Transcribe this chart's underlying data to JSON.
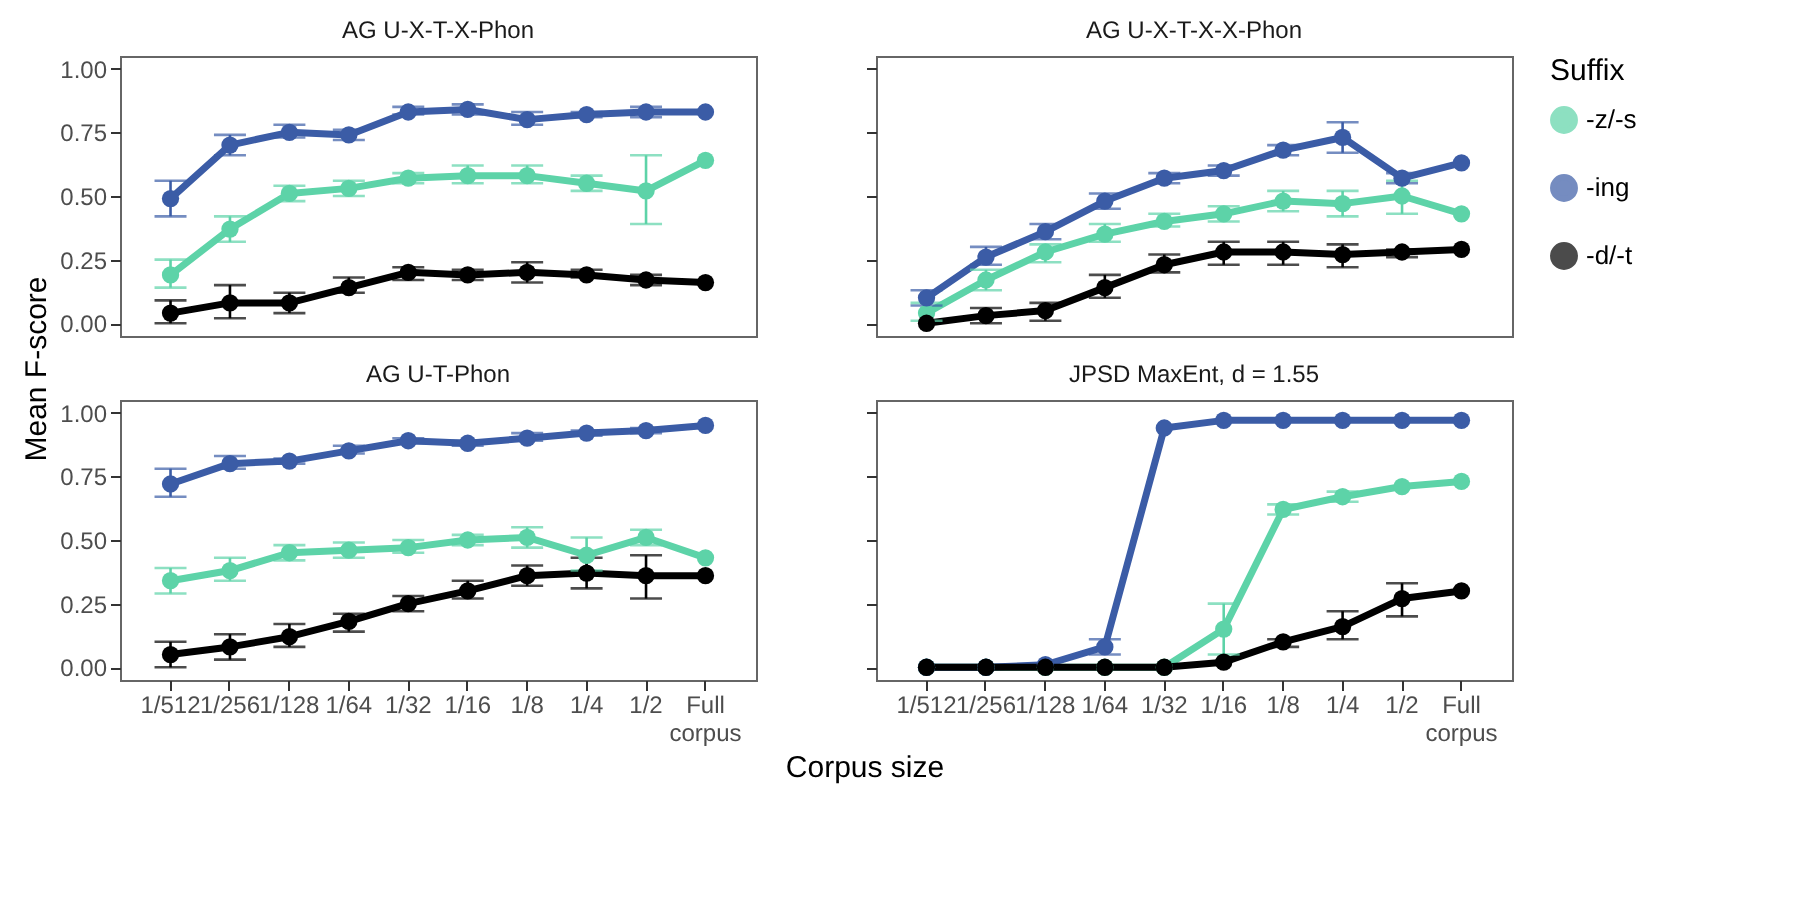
{
  "chart_data": [
    {
      "type": "line",
      "title": "AG U-X-T-X-Phon",
      "ylabel": "Mean F-score",
      "legend_title": "Suffix",
      "legend": "right",
      "marker": "circle",
      "line_style": "solid",
      "tick_labels": "y",
      "categories": [
        "1/512",
        "1/256",
        "1/128",
        "1/64",
        "1/32",
        "1/16",
        "1/8",
        "1/4",
        "1/2",
        "Full corpus"
      ],
      "ylim": [
        -0.05,
        1.05
      ],
      "yticks": [
        {
          "value": 0,
          "label": "0.00"
        },
        {
          "value": 0.25,
          "label": "0.25"
        },
        {
          "value": 0.5,
          "label": "0.50"
        },
        {
          "value": 0.75,
          "label": "0.75"
        },
        {
          "value": 1,
          "label": "1.00"
        }
      ],
      "series": [
        {
          "name": "-z/-s",
          "color": "#5dd3a8",
          "values": [
            0.19,
            0.37,
            0.51,
            0.53,
            0.57,
            0.58,
            0.58,
            0.55,
            0.52,
            0.64
          ],
          "errors": [
            [
              0.14,
              0.25
            ],
            [
              0.32,
              0.42
            ],
            [
              0.48,
              0.54
            ],
            [
              0.5,
              0.56
            ],
            [
              0.55,
              0.59
            ],
            [
              0.55,
              0.62
            ],
            [
              0.55,
              0.62
            ],
            [
              0.52,
              0.58
            ],
            [
              0.39,
              0.66
            ],
            null
          ]
        },
        {
          "name": "-ing",
          "color": "#3b5ca6",
          "values": [
            0.49,
            0.7,
            0.75,
            0.74,
            0.83,
            0.84,
            0.8,
            0.82,
            0.83,
            0.83
          ],
          "errors": [
            [
              0.42,
              0.56
            ],
            [
              0.66,
              0.74
            ],
            [
              0.73,
              0.78
            ],
            [
              0.72,
              0.76
            ],
            [
              0.82,
              0.85
            ],
            [
              0.82,
              0.86
            ],
            [
              0.78,
              0.83
            ],
            [
              0.81,
              0.83
            ],
            [
              0.81,
              0.85
            ],
            null
          ]
        },
        {
          "name": "-d/-t",
          "color": "#000000",
          "values": [
            0.04,
            0.08,
            0.08,
            0.14,
            0.2,
            0.19,
            0.2,
            0.19,
            0.17,
            0.16
          ],
          "errors": [
            [
              0.0,
              0.09
            ],
            [
              0.02,
              0.15
            ],
            [
              0.04,
              0.12
            ],
            [
              0.12,
              0.18
            ],
            [
              0.17,
              0.22
            ],
            [
              0.17,
              0.21
            ],
            [
              0.16,
              0.24
            ],
            [
              0.18,
              0.21
            ],
            [
              0.15,
              0.19
            ],
            null
          ]
        }
      ]
    },
    {
      "type": "line",
      "title": "AG U-X-T-X-X-Phon",
      "marker": "circle",
      "line_style": "solid",
      "tick_labels": false,
      "categories": [
        "1/512",
        "1/256",
        "1/128",
        "1/64",
        "1/32",
        "1/16",
        "1/8",
        "1/4",
        "1/2",
        "Full corpus"
      ],
      "ylim": [
        -0.05,
        1.05
      ],
      "yticks": [
        {
          "value": 0,
          "label": "0.00"
        },
        {
          "value": 0.25,
          "label": "0.25"
        },
        {
          "value": 0.5,
          "label": "0.50"
        },
        {
          "value": 0.75,
          "label": "0.75"
        },
        {
          "value": 1,
          "label": "1.00"
        }
      ],
      "series": [
        {
          "name": "-z/-s",
          "color": "#5dd3a8",
          "values": [
            0.04,
            0.17,
            0.28,
            0.35,
            0.4,
            0.43,
            0.48,
            0.47,
            0.5,
            0.43
          ],
          "errors": [
            [
              0.01,
              0.08
            ],
            [
              0.13,
              0.21
            ],
            [
              0.24,
              0.31
            ],
            [
              0.32,
              0.39
            ],
            [
              0.38,
              0.43
            ],
            [
              0.4,
              0.46
            ],
            [
              0.44,
              0.52
            ],
            [
              0.42,
              0.52
            ],
            [
              0.43,
              0.56
            ],
            null
          ]
        },
        {
          "name": "-ing",
          "color": "#3b5ca6",
          "values": [
            0.1,
            0.26,
            0.36,
            0.48,
            0.57,
            0.6,
            0.68,
            0.73,
            0.57,
            0.63
          ],
          "errors": [
            [
              0.07,
              0.13
            ],
            [
              0.23,
              0.3
            ],
            [
              0.33,
              0.39
            ],
            [
              0.45,
              0.51
            ],
            [
              0.55,
              0.59
            ],
            [
              0.58,
              0.62
            ],
            [
              0.66,
              0.7
            ],
            [
              0.67,
              0.79
            ],
            [
              0.55,
              0.59
            ],
            null
          ]
        },
        {
          "name": "-d/-t",
          "color": "#000000",
          "values": [
            0.0,
            0.03,
            0.05,
            0.14,
            0.23,
            0.28,
            0.28,
            0.27,
            0.28,
            0.29
          ],
          "errors": [
            null,
            [
              0.0,
              0.06
            ],
            [
              0.01,
              0.08
            ],
            [
              0.1,
              0.19
            ],
            [
              0.2,
              0.27
            ],
            [
              0.23,
              0.32
            ],
            [
              0.23,
              0.32
            ],
            [
              0.22,
              0.31
            ],
            [
              0.26,
              0.29
            ],
            null
          ]
        }
      ]
    },
    {
      "type": "line",
      "title": "AG U-T-Phon",
      "marker": "circle",
      "line_style": "solid",
      "categories": [
        "1/512",
        "1/256",
        "1/128",
        "1/64",
        "1/32",
        "1/16",
        "1/8",
        "1/4",
        "1/2",
        "Full corpus"
      ],
      "ylim": [
        -0.05,
        1.05
      ],
      "yticks": [
        {
          "value": 0,
          "label": "0.00"
        },
        {
          "value": 0.25,
          "label": "0.25"
        },
        {
          "value": 0.5,
          "label": "0.50"
        },
        {
          "value": 0.75,
          "label": "0.75"
        },
        {
          "value": 1,
          "label": "1.00"
        }
      ],
      "series": [
        {
          "name": "-z/-s",
          "color": "#5dd3a8",
          "values": [
            0.34,
            0.38,
            0.45,
            0.46,
            0.47,
            0.5,
            0.51,
            0.44,
            0.51,
            0.43
          ],
          "errors": [
            [
              0.29,
              0.39
            ],
            [
              0.34,
              0.43
            ],
            [
              0.42,
              0.48
            ],
            [
              0.43,
              0.49
            ],
            [
              0.45,
              0.5
            ],
            [
              0.48,
              0.52
            ],
            [
              0.47,
              0.55
            ],
            [
              0.38,
              0.51
            ],
            [
              0.48,
              0.54
            ],
            null
          ]
        },
        {
          "name": "-ing",
          "color": "#3b5ca6",
          "values": [
            0.72,
            0.8,
            0.81,
            0.85,
            0.89,
            0.88,
            0.9,
            0.92,
            0.93,
            0.95
          ],
          "errors": [
            [
              0.67,
              0.78
            ],
            [
              0.78,
              0.83
            ],
            [
              0.8,
              0.82
            ],
            [
              0.84,
              0.87
            ],
            [
              0.88,
              0.9
            ],
            [
              0.87,
              0.89
            ],
            [
              0.89,
              0.92
            ],
            [
              0.91,
              0.93
            ],
            [
              0.92,
              0.94
            ],
            null
          ]
        },
        {
          "name": "-d/-t",
          "color": "#000000",
          "values": [
            0.05,
            0.08,
            0.12,
            0.18,
            0.25,
            0.3,
            0.36,
            0.37,
            0.36,
            0.36
          ],
          "errors": [
            [
              0.0,
              0.1
            ],
            [
              0.03,
              0.13
            ],
            [
              0.08,
              0.17
            ],
            [
              0.14,
              0.21
            ],
            [
              0.22,
              0.28
            ],
            [
              0.27,
              0.34
            ],
            [
              0.32,
              0.4
            ],
            [
              0.31,
              0.43
            ],
            [
              0.27,
              0.44
            ],
            null
          ]
        }
      ]
    },
    {
      "type": "line",
      "title": "JPSD MaxEnt, d = 1.55",
      "xlabel": "Corpus size",
      "marker": "circle",
      "line_style": "solid",
      "tick_labels": "x",
      "categories": [
        "1/512",
        "1/256",
        "1/128",
        "1/64",
        "1/32",
        "1/16",
        "1/8",
        "1/4",
        "1/2",
        "Full corpus"
      ],
      "ylim": [
        -0.05,
        1.05
      ],
      "yticks": [
        {
          "value": 0,
          "label": "0.00"
        },
        {
          "value": 0.25,
          "label": "0.25"
        },
        {
          "value": 0.5,
          "label": "0.50"
        },
        {
          "value": 0.75,
          "label": "0.75"
        },
        {
          "value": 1,
          "label": "1.00"
        }
      ],
      "series": [
        {
          "name": "-z/-s",
          "color": "#5dd3a8",
          "values": [
            0.0,
            0.0,
            0.0,
            0.0,
            0.0,
            0.15,
            0.62,
            0.67,
            0.71,
            0.73
          ],
          "errors": [
            null,
            null,
            null,
            null,
            null,
            [
              0.05,
              0.25
            ],
            [
              0.6,
              0.64
            ],
            [
              0.65,
              0.69
            ],
            null,
            null
          ]
        },
        {
          "name": "-ing",
          "color": "#3b5ca6",
          "values": [
            0.0,
            0.0,
            0.01,
            0.08,
            0.94,
            0.97,
            0.97,
            0.97,
            0.97,
            0.97
          ],
          "errors": [
            null,
            null,
            null,
            [
              0.05,
              0.11
            ],
            null,
            null,
            null,
            null,
            null,
            null
          ]
        },
        {
          "name": "-d/-t",
          "color": "#000000",
          "values": [
            0.0,
            0.0,
            0.0,
            0.0,
            0.0,
            0.02,
            0.1,
            0.16,
            0.27,
            0.3
          ],
          "errors": [
            null,
            null,
            null,
            null,
            null,
            null,
            [
              0.08,
              0.11
            ],
            [
              0.11,
              0.22
            ],
            [
              0.2,
              0.33
            ],
            null
          ]
        }
      ]
    }
  ]
}
